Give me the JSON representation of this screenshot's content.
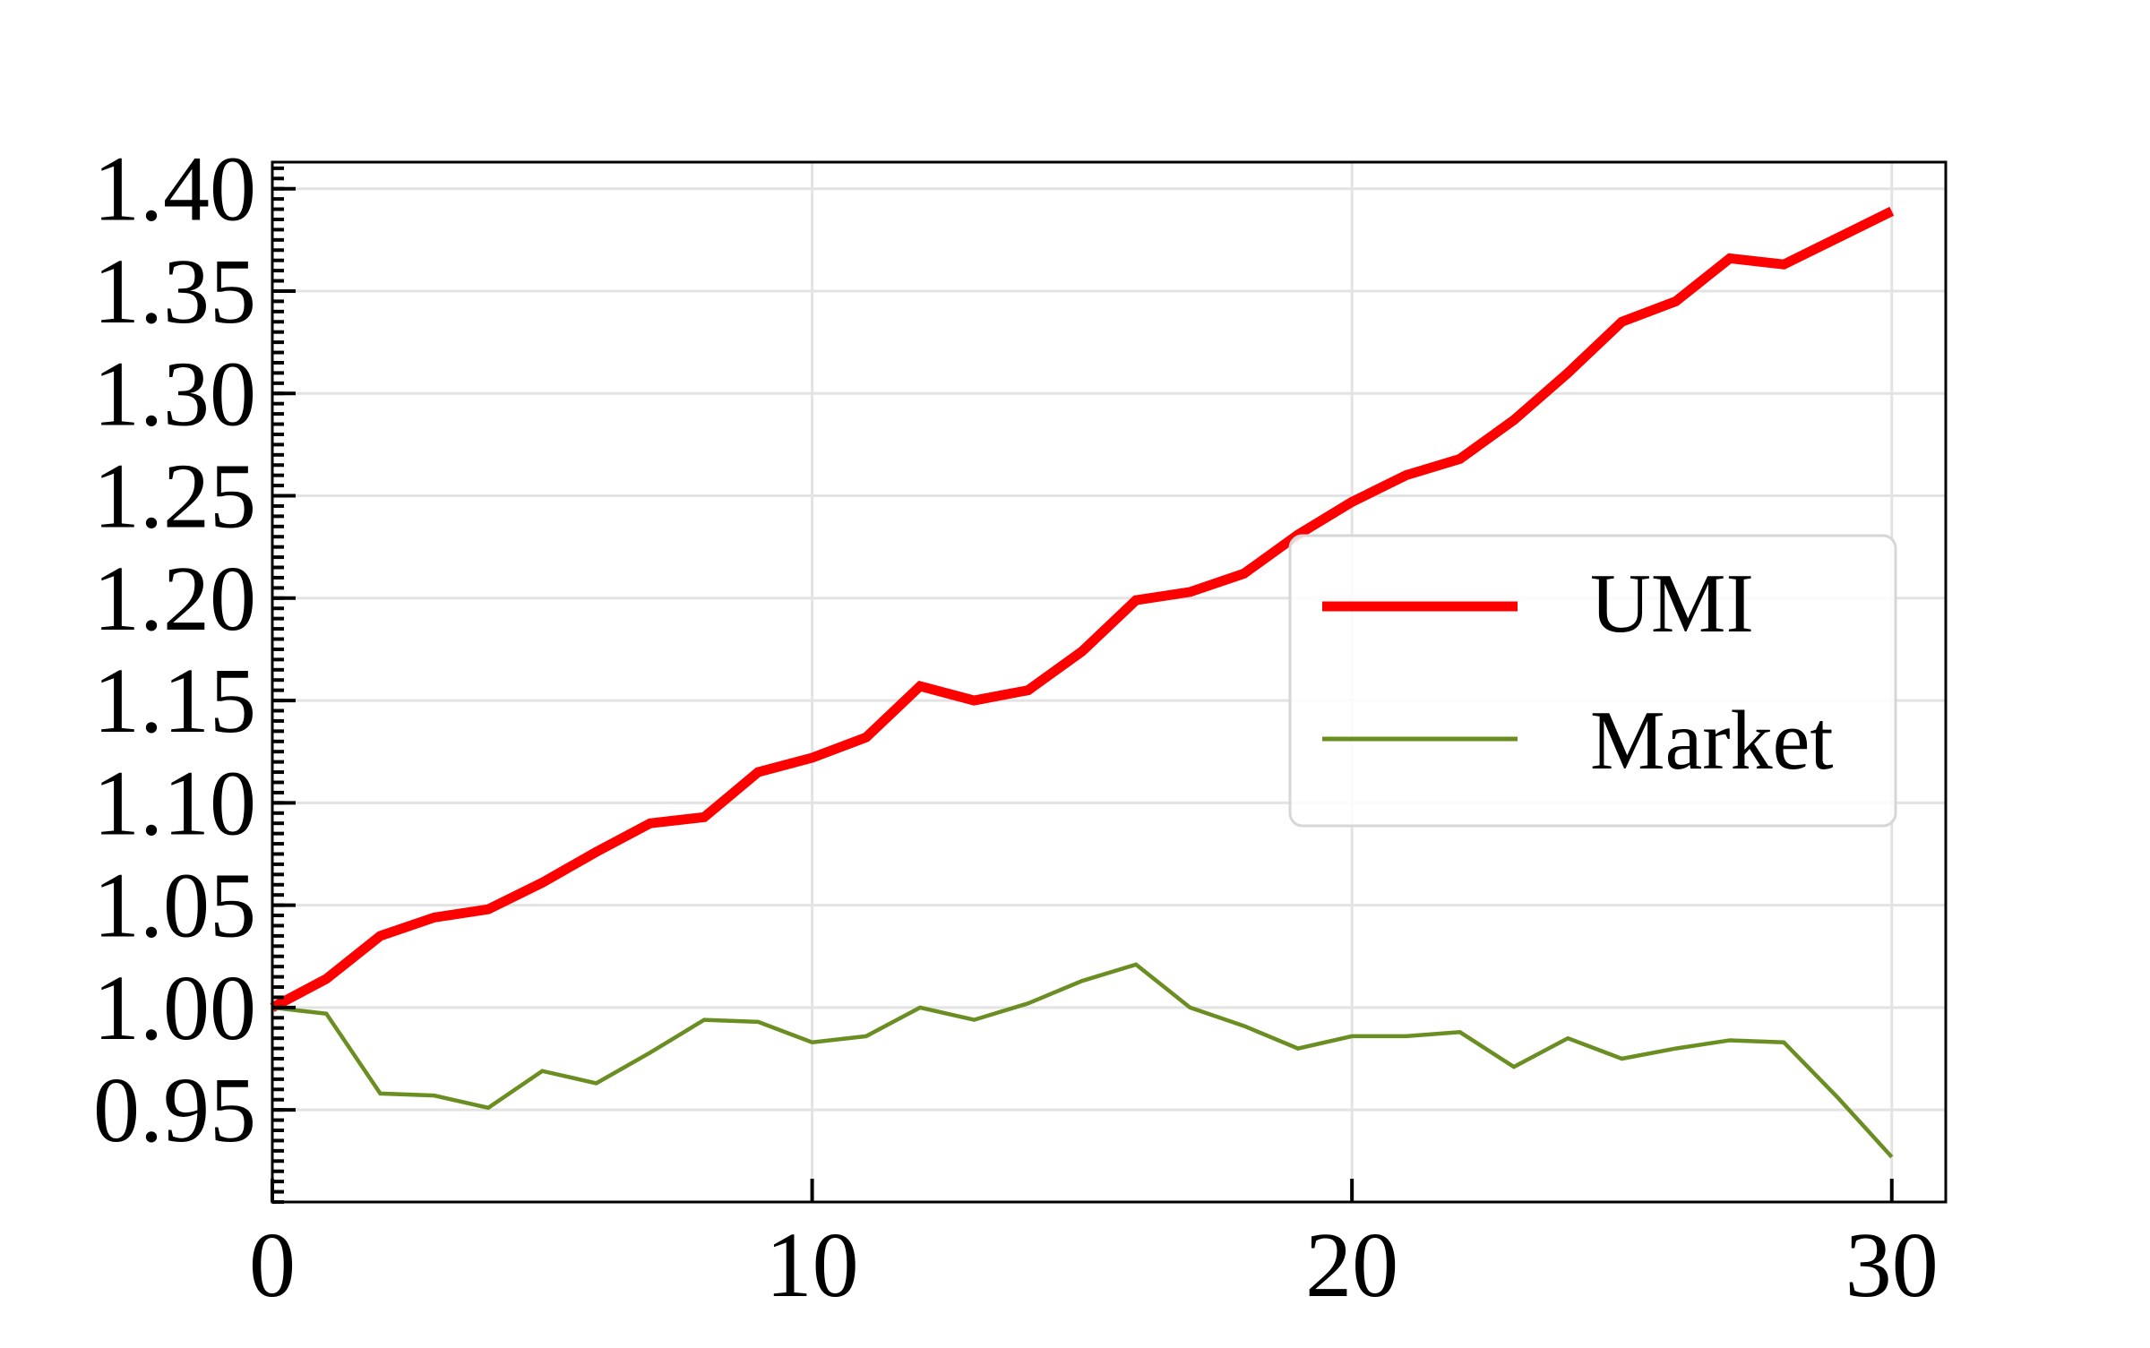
{
  "chart_data": {
    "type": "line",
    "title": "",
    "xlabel": "",
    "ylabel": "",
    "xlim": [
      0,
      31
    ],
    "ylim": [
      0.905,
      1.413
    ],
    "x_ticks": [
      0,
      10,
      20,
      30
    ],
    "x_tick_labels": [
      "0",
      "10",
      "20",
      "30"
    ],
    "y_ticks": [
      0.95,
      1.0,
      1.05,
      1.1,
      1.15,
      1.2,
      1.25,
      1.3,
      1.35,
      1.4
    ],
    "y_tick_labels": [
      "0.95",
      "1.00",
      "1.05",
      "1.10",
      "1.15",
      "1.20",
      "1.25",
      "1.30",
      "1.35",
      "1.40"
    ],
    "grid": true,
    "legend_position": "center-right",
    "x": [
      0,
      1,
      2,
      3,
      4,
      5,
      6,
      7,
      8,
      9,
      10,
      11,
      12,
      13,
      14,
      15,
      16,
      17,
      18,
      19,
      20,
      21,
      22,
      23,
      24,
      25,
      26,
      27,
      28,
      29,
      30
    ],
    "series": [
      {
        "name": "UMI",
        "color": "#ff0000",
        "values": [
          1.0,
          1.014,
          1.035,
          1.044,
          1.048,
          1.061,
          1.076,
          1.09,
          1.093,
          1.115,
          1.122,
          1.132,
          1.157,
          1.15,
          1.155,
          1.174,
          1.199,
          1.203,
          1.212,
          1.231,
          1.247,
          1.26,
          1.268,
          1.287,
          1.31,
          1.335,
          1.345,
          1.366,
          1.363,
          1.376,
          1.389
        ]
      },
      {
        "name": "Market",
        "color": "#6b8e23",
        "values": [
          1.0,
          0.997,
          0.958,
          0.957,
          0.951,
          0.969,
          0.963,
          0.978,
          0.994,
          0.993,
          0.983,
          0.986,
          1.0,
          0.994,
          1.002,
          1.013,
          1.021,
          1.0,
          0.991,
          0.98,
          0.986,
          0.986,
          0.988,
          0.971,
          0.985,
          0.975,
          0.98,
          0.984,
          0.983,
          0.956,
          0.927
        ]
      }
    ]
  }
}
